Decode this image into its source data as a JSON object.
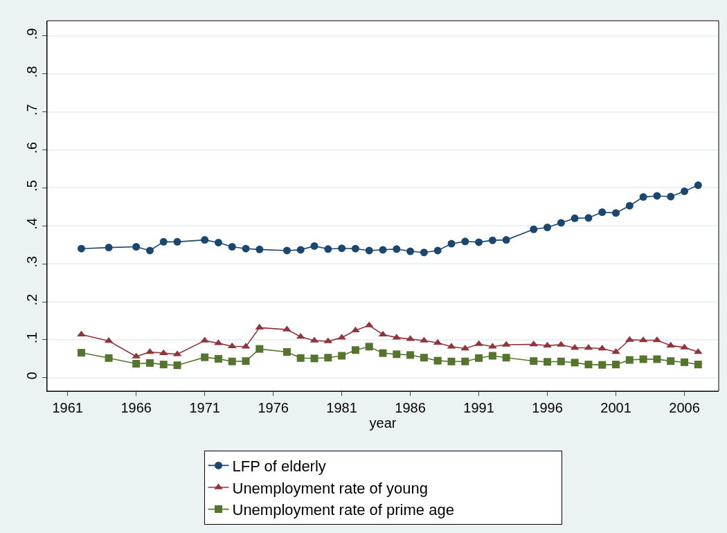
{
  "chart_data": {
    "type": "line",
    "xlabel": "year",
    "x": [
      1962,
      1964,
      1966,
      1967,
      1968,
      1969,
      1971,
      1972,
      1973,
      1974,
      1975,
      1977,
      1978,
      1979,
      1980,
      1981,
      1982,
      1983,
      1984,
      1985,
      1986,
      1987,
      1988,
      1989,
      1990,
      1991,
      1992,
      1993,
      1995,
      1996,
      1997,
      1998,
      1999,
      2000,
      2001,
      2002,
      2003,
      2004,
      2005,
      2006,
      2007
    ],
    "series": [
      {
        "name": "LFP of elderly",
        "color": "#1a476f",
        "marker": "circle",
        "values": [
          0.34,
          0.343,
          0.345,
          0.335,
          0.358,
          0.358,
          0.363,
          0.356,
          0.345,
          0.34,
          0.338,
          0.335,
          0.337,
          0.347,
          0.339,
          0.341,
          0.34,
          0.335,
          0.337,
          0.339,
          0.333,
          0.33,
          0.335,
          0.353,
          0.359,
          0.357,
          0.362,
          0.363,
          0.391,
          0.396,
          0.408,
          0.42,
          0.421,
          0.436,
          0.434,
          0.453,
          0.476,
          0.479,
          0.477,
          0.491,
          0.507
        ]
      },
      {
        "name": "Unemployment rate of young",
        "color": "#90353b",
        "marker": "triangle",
        "values": [
          0.114,
          0.097,
          0.056,
          0.068,
          0.065,
          0.062,
          0.098,
          0.091,
          0.083,
          0.082,
          0.132,
          0.127,
          0.108,
          0.098,
          0.096,
          0.106,
          0.125,
          0.138,
          0.114,
          0.106,
          0.102,
          0.098,
          0.092,
          0.082,
          0.077,
          0.089,
          0.082,
          0.087,
          0.088,
          0.085,
          0.087,
          0.079,
          0.079,
          0.077,
          0.068,
          0.1,
          0.099,
          0.099,
          0.085,
          0.08,
          0.068
        ]
      },
      {
        "name": "Unemployment rate of prime age",
        "color": "#55752f",
        "marker": "square",
        "values": [
          0.066,
          0.052,
          0.037,
          0.039,
          0.035,
          0.033,
          0.054,
          0.05,
          0.043,
          0.044,
          0.076,
          0.068,
          0.052,
          0.051,
          0.053,
          0.058,
          0.073,
          0.082,
          0.065,
          0.062,
          0.06,
          0.053,
          0.045,
          0.043,
          0.043,
          0.052,
          0.058,
          0.053,
          0.044,
          0.042,
          0.043,
          0.04,
          0.035,
          0.034,
          0.035,
          0.047,
          0.049,
          0.049,
          0.044,
          0.041,
          0.035
        ]
      }
    ],
    "xlim": [
      1959.5,
      2008.5
    ],
    "xticks": [
      1961,
      1966,
      1971,
      1976,
      1981,
      1986,
      1991,
      1996,
      2001,
      2006
    ],
    "ylim": [
      -0.035,
      0.94
    ],
    "yticks": [
      {
        "value": 0,
        "label": "0"
      },
      {
        "value": 0.1,
        "label": ".1"
      },
      {
        "value": 0.2,
        "label": ".2"
      },
      {
        "value": 0.3,
        "label": ".3"
      },
      {
        "value": 0.4,
        "label": ".4"
      },
      {
        "value": 0.5,
        "label": ".5"
      },
      {
        "value": 0.6,
        "label": ".6"
      },
      {
        "value": 0.7,
        "label": ".7"
      },
      {
        "value": 0.8,
        "label": ".8"
      },
      {
        "value": 0.9,
        "label": ".9"
      }
    ],
    "grid": "y",
    "legend": "bottom",
    "line_style": "solid"
  }
}
